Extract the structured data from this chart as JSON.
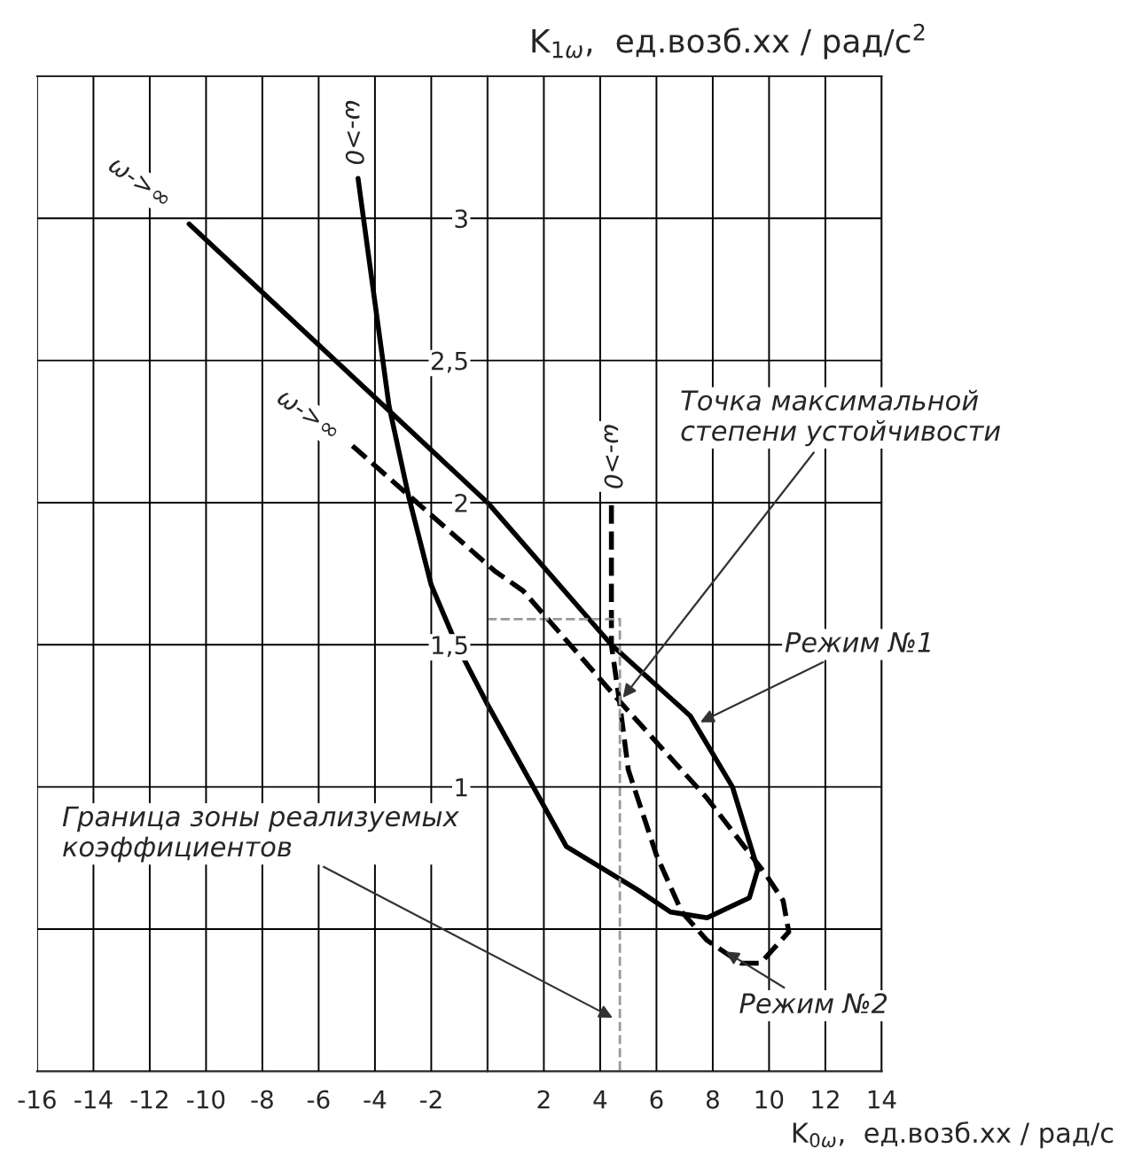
{
  "chart_data": {
    "type": "line",
    "xlabel": "K$_{0ω}$,  ед.возб.хх / рад/с",
    "ylabel": "K$_{1ω}$,  ед.возб.хх / рад/с$^{2}$",
    "xlim": [
      -16,
      14
    ],
    "ylim": [
      0,
      3.5
    ],
    "xticks": [
      -16,
      -14,
      -12,
      -10,
      -8,
      -6,
      -4,
      -2,
      2,
      4,
      6,
      8,
      10,
      12,
      14
    ],
    "yticks": [
      {
        "value": 0.5,
        "label": null
      },
      "1",
      {
        "value": 1.5,
        "label": "1,5"
      },
      2,
      {
        "value": 2.5,
        "label": "2,5"
      },
      3
    ],
    "grid": true,
    "marker": "none",
    "series": [
      {
        "color": "#000000",
        "line_style": "solid",
        "x": [
          -10.6,
          0,
          4.4,
          7.2,
          8.7,
          9.6,
          9.3,
          7.8,
          6.5,
          5.3,
          2.8,
          0,
          -1.1,
          -2.0,
          -2.8,
          -3.5,
          -4.6
        ],
        "values": [
          2.98,
          2.0,
          1.5,
          1.25,
          1.0,
          0.71,
          0.61,
          0.54,
          0.56,
          0.64,
          0.79,
          1.29,
          1.5,
          1.71,
          2.02,
          2.34,
          3.14
        ]
      },
      {
        "color": "#000000",
        "line_style": "dashed",
        "x": [
          -4.8,
          0.25,
          1.26,
          4.7,
          7.8,
          9.9,
          10.5,
          10.7,
          9.7,
          9.0,
          7.8,
          6.9,
          6.0,
          5.0,
          4.7,
          4.4,
          4.4
        ],
        "values": [
          2.2,
          1.76,
          1.69,
          1.3,
          0.96,
          0.69,
          0.6,
          0.49,
          0.38,
          0.38,
          0.46,
          0.56,
          0.76,
          1.06,
          1.29,
          1.5,
          2.0
        ]
      },
      {
        "color": "#999999",
        "line_style": "dashed",
        "x": [
          0,
          4.7,
          4.7
        ],
        "values": [
          1.59,
          1.59,
          0
        ]
      }
    ],
    "annotations": [
      {
        "text": "ω->∞",
        "x": -10.6,
        "y": 2.98
      },
      {
        "text": "ω->0",
        "x": -4.6,
        "y": 3.14
      },
      {
        "text": "ω->∞",
        "x": -4.8,
        "y": 2.2
      },
      {
        "text": "ω->0",
        "x": 4.4,
        "y": 2.0
      },
      {
        "text": "Точка максимальной\nстепени устойчивости",
        "x": 4.7,
        "y": 1.3
      },
      {
        "text": "Режим №1",
        "x": 7.4,
        "y": 1.22
      },
      {
        "text": "Режим №2",
        "x": 8.3,
        "y": 0.43
      },
      {
        "text": "Граница зоны реализуемых\nкоэффициентов",
        "x": 4.6,
        "y": 0.18
      }
    ]
  }
}
